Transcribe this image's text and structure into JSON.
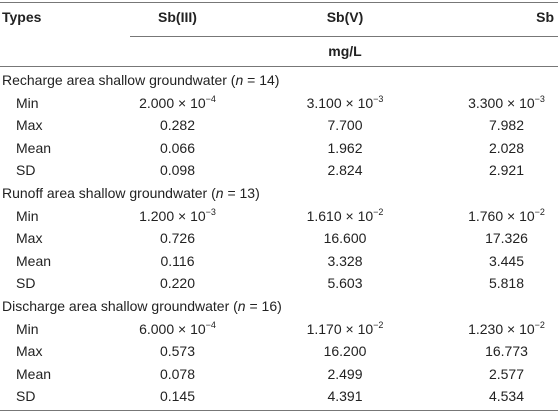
{
  "header": {
    "types": "Types",
    "columns": [
      "Sb(III)",
      "Sb(V)",
      "Sb"
    ],
    "unit": "mg/L"
  },
  "groups": [
    {
      "title": {
        "text": "Recharge area shallow groundwater (",
        "italic": "n",
        "rest": " = 14)"
      },
      "rows": [
        {
          "label": "Min",
          "cells": [
            {
              "base": "2.000 × 10",
              "exp": "−4"
            },
            {
              "base": "3.100 × 10",
              "exp": "−3"
            },
            {
              "base": "3.300 × 10",
              "exp": "−3"
            }
          ]
        },
        {
          "label": "Max",
          "cells": [
            "0.282",
            "7.700",
            "7.982"
          ]
        },
        {
          "label": "Mean",
          "cells": [
            "0.066",
            "1.962",
            "2.028"
          ]
        },
        {
          "label": "SD",
          "cells": [
            "0.098",
            "2.824",
            "2.921"
          ]
        }
      ]
    },
    {
      "title": {
        "text": "Runoff area shallow groundwater (",
        "italic": "n",
        "rest": " = 13)"
      },
      "rows": [
        {
          "label": "Min",
          "cells": [
            {
              "base": "1.200 × 10",
              "exp": "−3"
            },
            {
              "base": "1.610 × 10",
              "exp": "−2"
            },
            {
              "base": "1.760 × 10",
              "exp": "−2"
            }
          ]
        },
        {
          "label": "Max",
          "cells": [
            "0.726",
            "16.600",
            "17.326"
          ]
        },
        {
          "label": "Mean",
          "cells": [
            "0.116",
            "3.328",
            "3.445"
          ]
        },
        {
          "label": "SD",
          "cells": [
            "0.220",
            "5.603",
            "5.818"
          ]
        }
      ]
    },
    {
      "title": {
        "text": "Discharge area shallow groundwater (",
        "italic": "n",
        "rest": " = 16)"
      },
      "rows": [
        {
          "label": "Min",
          "cells": [
            {
              "base": "6.000 × 10",
              "exp": "−4"
            },
            {
              "base": "1.170 × 10",
              "exp": "−2"
            },
            {
              "base": "1.230 × 10",
              "exp": "−2"
            }
          ]
        },
        {
          "label": "Max",
          "cells": [
            "0.573",
            "16.200",
            "16.773"
          ]
        },
        {
          "label": "Mean",
          "cells": [
            "0.078",
            "2.499",
            "2.577"
          ]
        },
        {
          "label": "SD",
          "cells": [
            "0.145",
            "4.391",
            "4.534"
          ]
        }
      ]
    }
  ]
}
